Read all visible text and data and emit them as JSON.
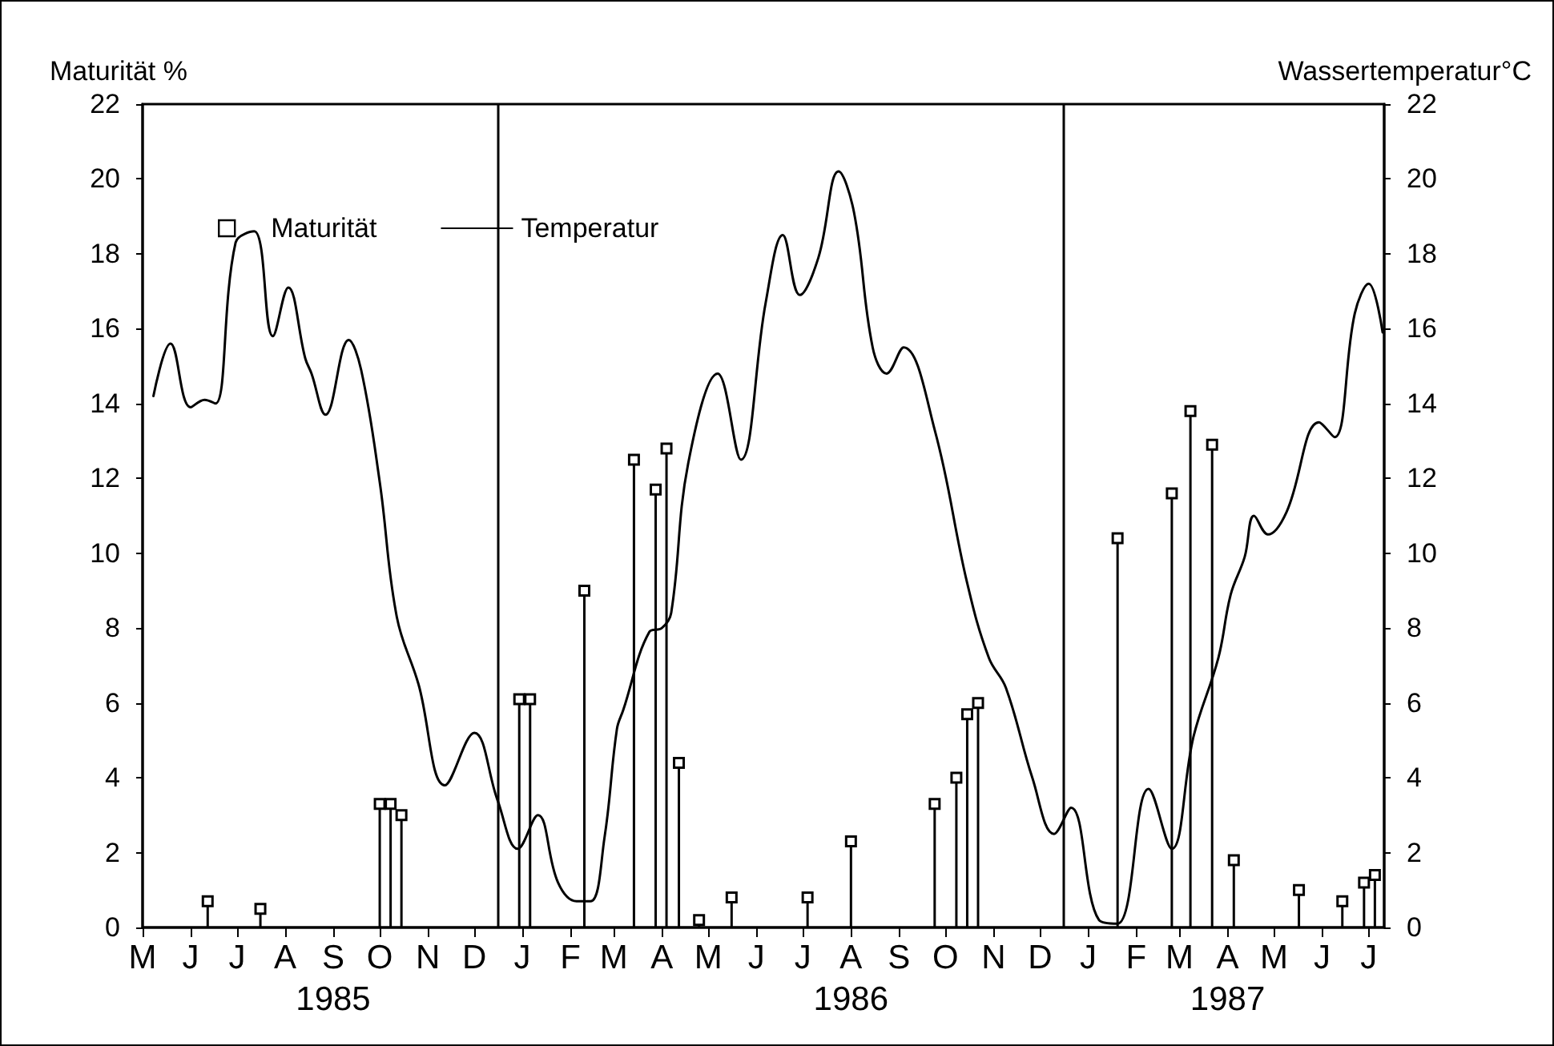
{
  "chart_data": {
    "type": "lollipop",
    "ylabel": "Maturität %",
    "y2label": "Wassertemperatur°C",
    "xlim": [
      "1985-05-01",
      "1987-07-11"
    ],
    "xticks": [
      {
        "value": "1985-05-01",
        "label": "M"
      },
      {
        "value": "1985-06-01",
        "label": "J"
      },
      {
        "value": "1985-07-01",
        "label": "J"
      },
      {
        "value": "1985-08-01",
        "label": "A"
      },
      {
        "value": "1985-09-01",
        "label": "S\n1985"
      },
      {
        "value": "1985-10-01",
        "label": "O"
      },
      {
        "value": "1985-11-01",
        "label": "N"
      },
      {
        "value": "1985-12-01",
        "label": "D"
      },
      {
        "value": "1986-01-01",
        "label": "J"
      },
      {
        "value": "1986-02-01",
        "label": "F"
      },
      {
        "value": "1986-03-01",
        "label": "M"
      },
      {
        "value": "1986-04-01",
        "label": "A"
      },
      {
        "value": "1986-05-01",
        "label": "M"
      },
      {
        "value": "1986-06-01",
        "label": "J"
      },
      {
        "value": "1986-07-01",
        "label": "J"
      },
      {
        "value": "1986-08-01",
        "label": "A\n1986"
      },
      {
        "value": "1986-09-01",
        "label": "S"
      },
      {
        "value": "1986-10-01",
        "label": "O"
      },
      {
        "value": "1986-11-01",
        "label": "N"
      },
      {
        "value": "1986-12-01",
        "label": "D"
      },
      {
        "value": "1987-01-01",
        "label": "J"
      },
      {
        "value": "1987-02-01",
        "label": "F"
      },
      {
        "value": "1987-03-01",
        "label": "M"
      },
      {
        "value": "1987-04-01",
        "label": "A\n1987"
      },
      {
        "value": "1987-05-01",
        "label": "M"
      },
      {
        "value": "1987-06-01",
        "label": "J"
      },
      {
        "value": "1987-07-01",
        "label": "J"
      }
    ],
    "ylim": [
      0,
      22
    ],
    "yticks": [
      0,
      2,
      4,
      6,
      8,
      10,
      12,
      14,
      16,
      18,
      20,
      22
    ],
    "y2lim": [
      0,
      22
    ],
    "y2ticks": [
      0,
      2,
      4,
      6,
      8,
      10,
      12,
      14,
      16,
      18,
      20,
      22
    ],
    "grid": false,
    "legend": "top left",
    "ref_lines": [
      {
        "axis": "x",
        "value": "1985-12-16"
      },
      {
        "axis": "x",
        "value": "1986-12-16"
      }
    ],
    "series": [
      {
        "name": "Maturität",
        "marker": "square",
        "color": "#000000",
        "x": [
          "1985-06-12",
          "1985-07-16",
          "1985-10-01",
          "1985-10-08",
          "1985-10-15",
          "1985-12-30",
          "1986-01-06",
          "1986-02-10",
          "1986-03-14",
          "1986-03-28",
          "1986-04-04",
          "1986-04-12",
          "1986-04-25",
          "1986-05-16",
          "1986-07-04",
          "1986-08-01",
          "1986-09-24",
          "1986-10-08",
          "1986-10-15",
          "1986-10-22",
          "1987-01-20",
          "1987-02-24",
          "1987-03-08",
          "1987-03-22",
          "1987-04-05",
          "1987-05-17",
          "1987-06-14",
          "1987-06-28",
          "1987-07-05"
        ],
        "values": [
          0.7,
          0.5,
          3.3,
          3.3,
          3.0,
          6.1,
          6.1,
          9.0,
          12.5,
          11.7,
          12.8,
          4.4,
          0.2,
          0.8,
          0.8,
          2.3,
          3.3,
          4.0,
          5.7,
          6.0,
          10.4,
          11.6,
          13.8,
          12.9,
          1.8,
          1.0,
          0.7,
          1.2,
          1.4
        ]
      },
      {
        "name": "Temperatur",
        "type": "line",
        "axis": "y2",
        "marker": "none",
        "line_style": "solid",
        "color": "#000000",
        "x": [
          "1985-05-08",
          "1985-05-19",
          "1985-06-01",
          "1985-06-10",
          "1985-06-17",
          "1985-06-30",
          "1985-07-12",
          "1985-07-24",
          "1985-08-03",
          "1985-08-14",
          "1985-08-18",
          "1985-08-27",
          "1985-09-11",
          "1985-09-19",
          "1985-10-01",
          "1985-10-12",
          "1985-10-26",
          "1985-11-12",
          "1985-12-01",
          "1985-12-16",
          "1985-12-29",
          "1986-01-11",
          "1986-01-24",
          "1986-02-05",
          "1986-02-14",
          "1986-02-23",
          "1986-03-03",
          "1986-03-07",
          "1986-03-24",
          "1986-04-01",
          "1986-04-07",
          "1986-04-18",
          "1986-05-07",
          "1986-05-22",
          "1986-06-07",
          "1986-06-18",
          "1986-06-29",
          "1986-07-11",
          "1986-07-24",
          "1986-08-03",
          "1986-08-15",
          "1986-08-24",
          "1986-09-04",
          "1986-09-24",
          "1986-10-15",
          "1986-10-29",
          "1986-11-09",
          "1986-11-26",
          "1986-12-10",
          "1986-12-21",
          "1987-01-08",
          "1987-01-20",
          "1987-02-09",
          "1987-02-24",
          "1987-03-10",
          "1987-03-26",
          "1987-04-03",
          "1987-04-12",
          "1987-04-18",
          "1987-04-27",
          "1987-05-09",
          "1987-05-30",
          "1987-06-09",
          "1987-06-22",
          "1987-07-01",
          "1987-07-10"
        ],
        "values": [
          14.2,
          15.6,
          13.9,
          14.1,
          14.0,
          18.3,
          18.6,
          15.8,
          17.1,
          15.2,
          14.8,
          13.7,
          15.7,
          14.9,
          11.9,
          8.3,
          6.5,
          3.8,
          5.2,
          3.4,
          2.1,
          3.0,
          1.2,
          0.7,
          0.7,
          2.4,
          5.3,
          5.8,
          7.9,
          8.0,
          8.4,
          12.4,
          14.8,
          12.5,
          16.7,
          18.5,
          16.9,
          17.9,
          20.2,
          19.1,
          15.5,
          14.8,
          15.5,
          13.3,
          9.2,
          7.2,
          6.4,
          4.0,
          2.5,
          3.2,
          0.2,
          0.1,
          3.7,
          2.1,
          5.1,
          7.2,
          8.9,
          9.9,
          11.0,
          10.5,
          11.1,
          13.5,
          13.1,
          16.4,
          17.2,
          15.9
        ]
      }
    ]
  }
}
